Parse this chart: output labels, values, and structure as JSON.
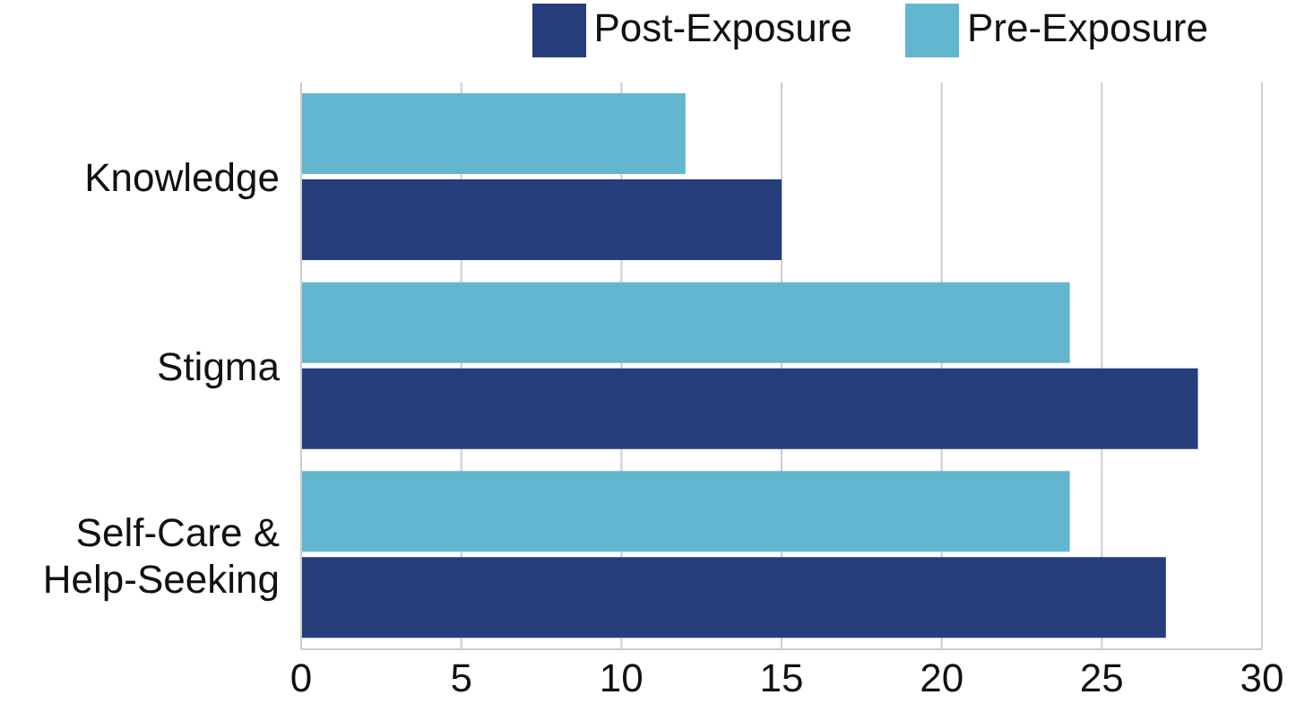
{
  "chart_data": {
    "type": "bar",
    "orientation": "horizontal",
    "categories": [
      "Knowledge",
      "Stigma",
      "Self-Care & Help-Seeking"
    ],
    "series": [
      {
        "name": "Pre-Exposure",
        "color": "#63b6cf",
        "values": [
          12,
          24,
          24
        ]
      },
      {
        "name": "Post-Exposure",
        "color": "#253e7b",
        "values": [
          15,
          28,
          27
        ]
      }
    ],
    "xlim": [
      0,
      30
    ],
    "xticks": [
      0,
      5,
      10,
      15,
      20,
      25,
      30
    ],
    "grid": "x",
    "legend": "top right"
  }
}
